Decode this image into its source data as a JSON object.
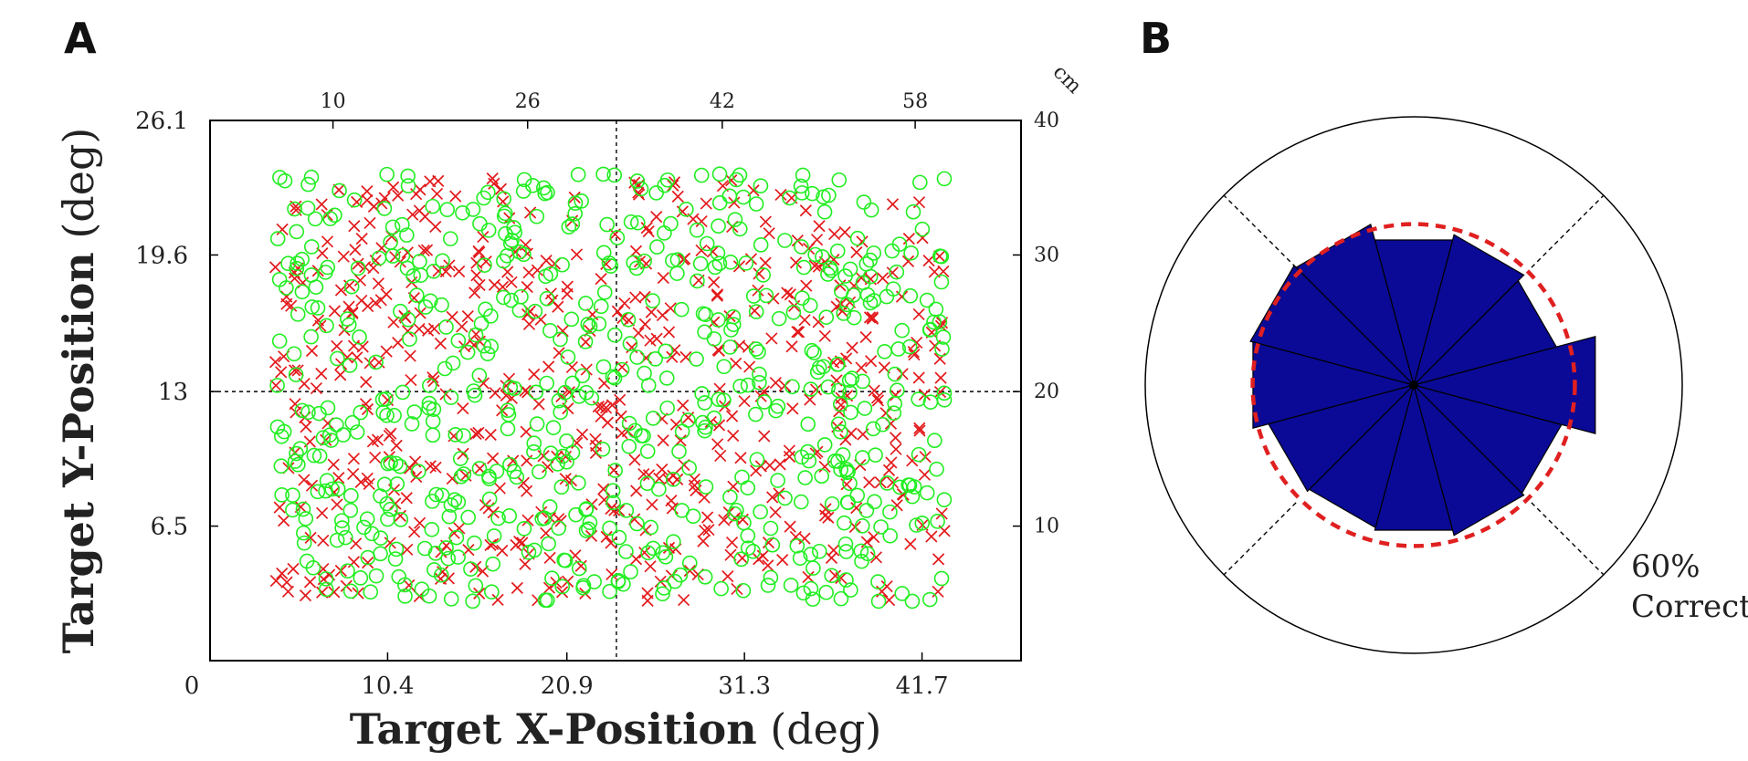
{
  "panels": {
    "a": {
      "label": "A"
    },
    "b": {
      "label": "B"
    }
  },
  "colors": {
    "incorrect": "#e31a1c",
    "correct": "#22ee22",
    "bars": "#0a0a96",
    "reference": "#e02020"
  },
  "chart_data": [
    {
      "type": "scatter",
      "panel": "A",
      "title": "",
      "xlabel": "Target X-Position",
      "xlabel_unit": "(deg)",
      "ylabel": "Target Y-Position",
      "ylabel_unit": "(deg)",
      "xlim": [
        0,
        47.5
      ],
      "ylim": [
        0,
        26.1
      ],
      "x_ticks": [
        "0",
        "10.4",
        "20.9",
        "31.3",
        "41.7"
      ],
      "x_tick_values": [
        0,
        10.4,
        20.9,
        31.3,
        41.7
      ],
      "y_ticks": [
        "26.1",
        "19.6",
        "13",
        "6.5"
      ],
      "y_tick_values": [
        26.1,
        19.6,
        13,
        6.5
      ],
      "top_axis_unit": "cm",
      "top_ticks": [
        "10",
        "26",
        "42",
        "58"
      ],
      "top_tick_values_deg": [
        7.2,
        18.6,
        30.0,
        41.3
      ],
      "right_ticks": [
        "40",
        "30",
        "20",
        "10"
      ],
      "right_tick_values_deg": [
        26.1,
        19.6,
        13,
        6.5
      ],
      "reference_lines": {
        "x": 23.8,
        "y": 13
      },
      "grid": false,
      "legend": "none",
      "series": [
        {
          "marker": "x",
          "color": "#e31a1c",
          "count": 620,
          "x_range": [
            3.8,
            43.2
          ],
          "y_range": [
            2.8,
            23.3
          ]
        },
        {
          "marker": "o",
          "color": "#22ee22",
          "count": 640,
          "x_range": [
            3.8,
            43.2
          ],
          "y_range": [
            2.8,
            23.6
          ]
        }
      ]
    },
    {
      "type": "polar-bar",
      "panel": "B",
      "title": "",
      "rlim": [
        0,
        100
      ],
      "reference_circle": {
        "value": 60,
        "label_value": "60%",
        "label_text": "Correct",
        "style": "dashed"
      },
      "sector_divider_angles_deg": [
        45,
        135,
        225,
        315
      ],
      "bar_angles_deg": [
        0,
        30,
        60,
        90,
        120,
        150,
        180,
        210,
        240,
        270,
        300,
        330
      ],
      "bar_width_deg": 30,
      "values": [
        70,
        55,
        58,
        56,
        62,
        63,
        62,
        56,
        55,
        56,
        58,
        57
      ],
      "grid": false
    }
  ]
}
